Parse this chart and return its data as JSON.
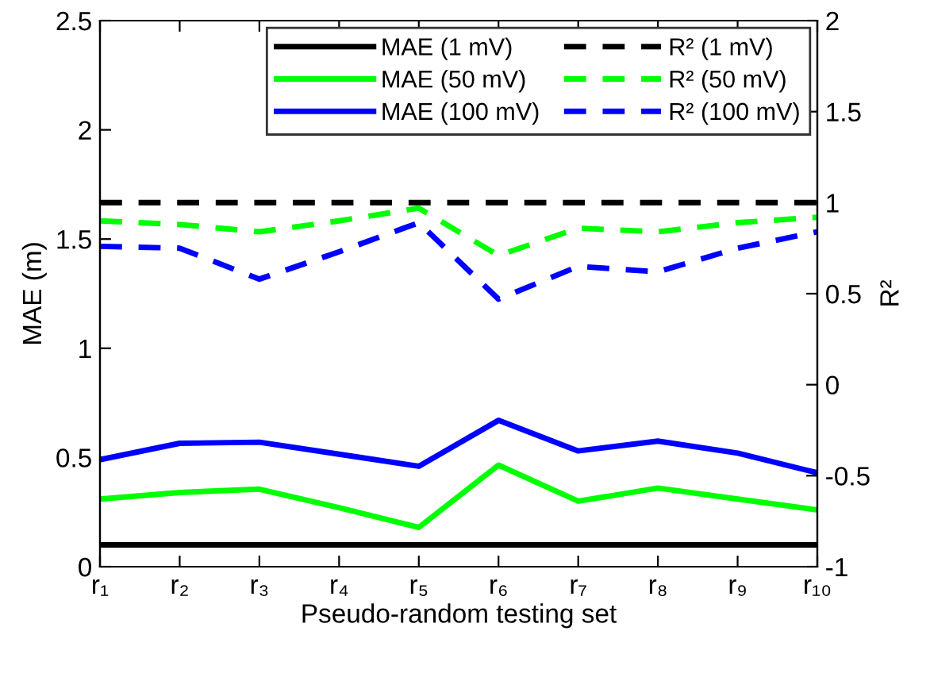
{
  "chart_data": {
    "type": "line",
    "xlabel": "Pseudo-random testing set",
    "ylabel": "MAE (m)",
    "y2label": "R²",
    "categories": [
      "r₁",
      "r₂",
      "r₃",
      "r₄",
      "r₅",
      "r₆",
      "r₇",
      "r₈",
      "r₉",
      "r₁₀"
    ],
    "ylim": [
      0,
      2.5
    ],
    "yticks": [
      0,
      0.5,
      1,
      1.5,
      2,
      2.5
    ],
    "y2lim": [
      -1,
      2
    ],
    "y2ticks": [
      -1,
      -0.5,
      0,
      0.5,
      1,
      1.5,
      2
    ],
    "legend": "top right",
    "grid": false,
    "marker": "none",
    "series": [
      {
        "name": "MAE (1 mV)",
        "color": "#000000",
        "line_style": "solid",
        "values": [
          0.1,
          0.1,
          0.1,
          0.1,
          0.1,
          0.1,
          0.1,
          0.1,
          0.1,
          0.1
        ]
      },
      {
        "name": "MAE (50 mV)",
        "color": "#00ff00",
        "line_style": "solid",
        "values": [
          0.31,
          0.34,
          0.355,
          0.27,
          0.18,
          0.465,
          0.3,
          0.36,
          0.31,
          0.26
        ]
      },
      {
        "name": "MAE (100 mV)",
        "color": "#0000ff",
        "line_style": "solid",
        "values": [
          0.49,
          0.565,
          0.57,
          0.515,
          0.46,
          0.67,
          0.53,
          0.575,
          0.52,
          0.43
        ]
      },
      {
        "name": "R² (1 mV)",
        "color": "#000000",
        "line_style": "dashed",
        "axis": "y2",
        "values": [
          1,
          1,
          1,
          1,
          1,
          1,
          1,
          1,
          1,
          1
        ]
      },
      {
        "name": "R² (50 mV)",
        "color": "#00ff00",
        "line_style": "dashed",
        "axis": "y2",
        "values": [
          0.9,
          0.88,
          0.84,
          0.9,
          0.97,
          0.71,
          0.86,
          0.84,
          0.89,
          0.92
        ]
      },
      {
        "name": "R² (100 mV)",
        "color": "#0000ff",
        "line_style": "dashed",
        "axis": "y2",
        "values": [
          0.76,
          0.75,
          0.58,
          0.73,
          0.89,
          0.47,
          0.65,
          0.62,
          0.75,
          0.84
        ]
      }
    ]
  }
}
